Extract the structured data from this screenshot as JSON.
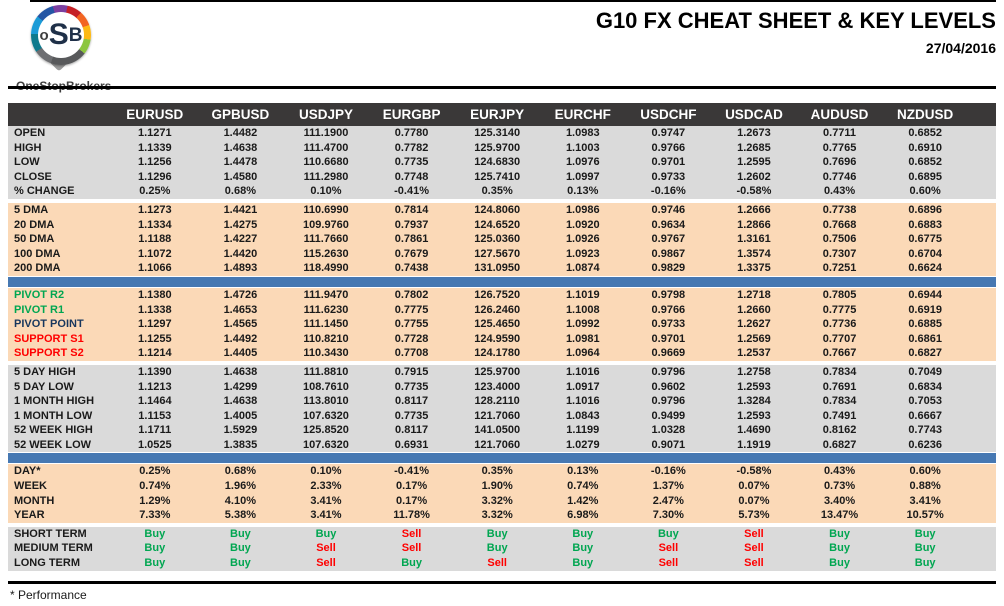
{
  "header": {
    "logo": {
      "o": "o",
      "s": "S",
      "b": "B",
      "brand": "OneStopBrokers"
    },
    "title": "G10 FX CHEAT SHEET & KEY LEVELS",
    "date": "27/04/2016"
  },
  "colors": {
    "header-bar": "#3a3838",
    "gray-row": "#dadada",
    "peach-row": "#fbd9b7",
    "divider-blue": "#4678b2",
    "buy-green": "#00a651",
    "sell-red": "#ff0000",
    "pivot-green": "#00a651",
    "pivot-navy": "#17365d",
    "support-red": "#ff0000"
  },
  "table": {
    "columns": [
      "EURUSD",
      "GPBUSD",
      "USDJPY",
      "EURGBP",
      "EURJPY",
      "EURCHF",
      "USDCHF",
      "USDCAD",
      "AUDUSD",
      "NZDUSD"
    ],
    "sections": [
      {
        "name": "ohlc",
        "style": "gray",
        "after": "gap",
        "rows": [
          {
            "label": "OPEN",
            "values": [
              "1.1271",
              "1.4482",
              "111.1900",
              "0.7780",
              "125.3140",
              "1.0983",
              "0.9747",
              "1.2673",
              "0.7711",
              "0.6852"
            ]
          },
          {
            "label": "HIGH",
            "values": [
              "1.1339",
              "1.4638",
              "111.4700",
              "0.7782",
              "125.9700",
              "1.1003",
              "0.9766",
              "1.2685",
              "0.7765",
              "0.6910"
            ]
          },
          {
            "label": "LOW",
            "values": [
              "1.1256",
              "1.4478",
              "110.6680",
              "0.7735",
              "124.6830",
              "1.0976",
              "0.9701",
              "1.2595",
              "0.7696",
              "0.6852"
            ]
          },
          {
            "label": "CLOSE",
            "values": [
              "1.1296",
              "1.4580",
              "111.2980",
              "0.7748",
              "125.7410",
              "1.0997",
              "0.9733",
              "1.2602",
              "0.7746",
              "0.6895"
            ]
          },
          {
            "label": "% CHANGE",
            "values": [
              "0.25%",
              "0.68%",
              "0.10%",
              "-0.41%",
              "0.35%",
              "0.13%",
              "-0.16%",
              "-0.58%",
              "0.43%",
              "0.60%"
            ]
          }
        ]
      },
      {
        "name": "moving-averages",
        "style": "peach",
        "after": "bar",
        "rows": [
          {
            "label": "5 DMA",
            "values": [
              "1.1273",
              "1.4421",
              "110.6990",
              "0.7814",
              "124.8060",
              "1.0986",
              "0.9746",
              "1.2666",
              "0.7738",
              "0.6896"
            ]
          },
          {
            "label": "20 DMA",
            "values": [
              "1.1334",
              "1.4275",
              "109.9760",
              "0.7937",
              "124.6520",
              "1.0920",
              "0.9634",
              "1.2866",
              "0.7668",
              "0.6883"
            ]
          },
          {
            "label": "50 DMA",
            "values": [
              "1.1188",
              "1.4227",
              "111.7660",
              "0.7861",
              "125.0360",
              "1.0926",
              "0.9767",
              "1.3161",
              "0.7506",
              "0.6775"
            ]
          },
          {
            "label": "100 DMA",
            "values": [
              "1.1072",
              "1.4420",
              "115.2630",
              "0.7679",
              "127.5670",
              "1.0923",
              "0.9867",
              "1.3574",
              "0.7307",
              "0.6704"
            ]
          },
          {
            "label": "200 DMA",
            "values": [
              "1.1066",
              "1.4893",
              "118.4990",
              "0.7438",
              "131.0950",
              "1.0874",
              "0.9829",
              "1.3375",
              "0.7251",
              "0.6624"
            ]
          }
        ]
      },
      {
        "name": "pivots",
        "style": "peach",
        "after": "gap",
        "rows": [
          {
            "label": "PIVOT R2",
            "label_style": "green",
            "values": [
              "1.1380",
              "1.4726",
              "111.9470",
              "0.7802",
              "126.7520",
              "1.1019",
              "0.9798",
              "1.2718",
              "0.7805",
              "0.6944"
            ]
          },
          {
            "label": "PIVOT R1",
            "label_style": "green",
            "values": [
              "1.1338",
              "1.4653",
              "111.6230",
              "0.7775",
              "126.2460",
              "1.1008",
              "0.9766",
              "1.2660",
              "0.7775",
              "0.6919"
            ]
          },
          {
            "label": "PIVOT POINT",
            "label_style": "navy",
            "values": [
              "1.1297",
              "1.4565",
              "111.1450",
              "0.7755",
              "125.4650",
              "1.0992",
              "0.9733",
              "1.2627",
              "0.7736",
              "0.6885"
            ]
          },
          {
            "label": "SUPPORT S1",
            "label_style": "red",
            "values": [
              "1.1255",
              "1.4492",
              "110.8210",
              "0.7728",
              "124.9590",
              "1.0981",
              "0.9701",
              "1.2569",
              "0.7707",
              "0.6861"
            ]
          },
          {
            "label": "SUPPORT S2",
            "label_style": "red",
            "values": [
              "1.1214",
              "1.4405",
              "110.3430",
              "0.7708",
              "124.1780",
              "1.0964",
              "0.9669",
              "1.2537",
              "0.7667",
              "0.6827"
            ]
          }
        ]
      },
      {
        "name": "ranges",
        "style": "gray",
        "after": "bar",
        "rows": [
          {
            "label": "5 DAY HIGH",
            "values": [
              "1.1390",
              "1.4638",
              "111.8810",
              "0.7915",
              "125.9700",
              "1.1016",
              "0.9796",
              "1.2758",
              "0.7834",
              "0.7049"
            ]
          },
          {
            "label": "5 DAY LOW",
            "values": [
              "1.1213",
              "1.4299",
              "108.7610",
              "0.7735",
              "123.4000",
              "1.0917",
              "0.9602",
              "1.2593",
              "0.7691",
              "0.6834"
            ]
          },
          {
            "label": "1 MONTH HIGH",
            "values": [
              "1.1464",
              "1.4638",
              "113.8010",
              "0.8117",
              "128.2110",
              "1.1016",
              "0.9796",
              "1.3284",
              "0.7834",
              "0.7053"
            ]
          },
          {
            "label": "1 MONTH LOW",
            "values": [
              "1.1153",
              "1.4005",
              "107.6320",
              "0.7735",
              "121.7060",
              "1.0843",
              "0.9499",
              "1.2593",
              "0.7491",
              "0.6667"
            ]
          },
          {
            "label": "52 WEEK HIGH",
            "values": [
              "1.1711",
              "1.5929",
              "125.8520",
              "0.8117",
              "141.0500",
              "1.1199",
              "1.0328",
              "1.4690",
              "0.8162",
              "0.7743"
            ]
          },
          {
            "label": "52 WEEK LOW",
            "values": [
              "1.0525",
              "1.3835",
              "107.6320",
              "0.6931",
              "121.7060",
              "1.0279",
              "0.9071",
              "1.1919",
              "0.6827",
              "0.6236"
            ]
          }
        ]
      },
      {
        "name": "performance",
        "style": "peach",
        "after": "gap",
        "rows": [
          {
            "label": "DAY*",
            "values": [
              "0.25%",
              "0.68%",
              "0.10%",
              "-0.41%",
              "0.35%",
              "0.13%",
              "-0.16%",
              "-0.58%",
              "0.43%",
              "0.60%"
            ]
          },
          {
            "label": "WEEK",
            "values": [
              "0.74%",
              "1.96%",
              "2.33%",
              "0.17%",
              "1.90%",
              "0.74%",
              "1.37%",
              "0.07%",
              "0.73%",
              "0.88%"
            ]
          },
          {
            "label": "MONTH",
            "values": [
              "1.29%",
              "4.10%",
              "3.41%",
              "0.17%",
              "3.32%",
              "1.42%",
              "2.47%",
              "0.07%",
              "3.40%",
              "3.41%"
            ]
          },
          {
            "label": "YEAR",
            "values": [
              "7.33%",
              "5.38%",
              "3.41%",
              "11.78%",
              "3.32%",
              "6.98%",
              "7.30%",
              "5.73%",
              "13.47%",
              "10.57%"
            ]
          }
        ]
      },
      {
        "name": "signals",
        "style": "gray",
        "after": "none",
        "rows": [
          {
            "label": "SHORT TERM",
            "values": [
              "Buy",
              "Buy",
              "Buy",
              "Sell",
              "Buy",
              "Buy",
              "Buy",
              "Sell",
              "Buy",
              "Buy"
            ]
          },
          {
            "label": "MEDIUM TERM",
            "values": [
              "Buy",
              "Buy",
              "Sell",
              "Sell",
              "Buy",
              "Buy",
              "Sell",
              "Sell",
              "Buy",
              "Buy"
            ]
          },
          {
            "label": "LONG TERM",
            "values": [
              "Buy",
              "Buy",
              "Sell",
              "Buy",
              "Sell",
              "Buy",
              "Sell",
              "Sell",
              "Buy",
              "Buy"
            ]
          }
        ]
      }
    ]
  },
  "footer": {
    "note": "* Performance"
  }
}
